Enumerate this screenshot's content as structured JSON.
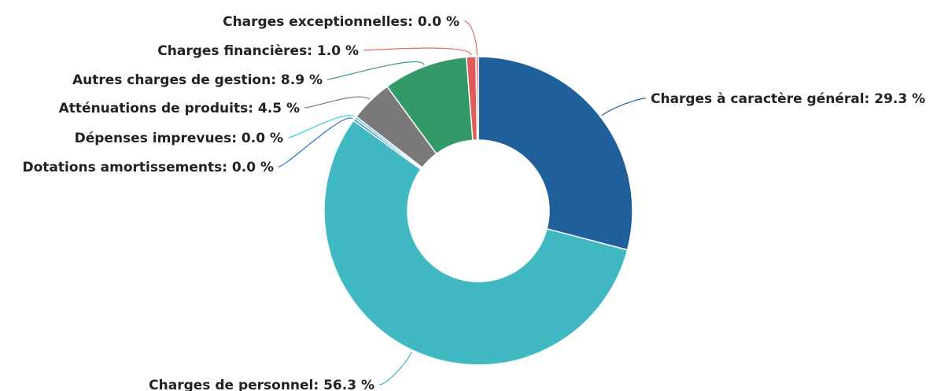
{
  "chart_data": {
    "type": "pie",
    "variant": "donut",
    "unit": "%",
    "categories": [
      "Charges à caractère général",
      "Charges de personnel",
      "Dotations amortissements",
      "Dépenses imprevues",
      "Atténuations de produits",
      "Autres charges de gestion",
      "Charges financières",
      "Charges exceptionnelles"
    ],
    "values": [
      29.3,
      56.3,
      0.0,
      0.0,
      4.5,
      8.9,
      1.0,
      0.0
    ],
    "labels": [
      "Charges à caractère général: 29.3 %",
      "Charges de personnel: 56.3 %",
      "Dotations amortissements: 0.0 %",
      "Dépenses imprevues: 0.0 %",
      "Atténuations de produits: 4.5 %",
      "Autres charges de gestion: 8.9 %",
      "Charges financières: 1.0 %",
      "Charges exceptionnelles: 0.0 %"
    ],
    "colors": [
      "#1f5f9c",
      "#40b9c2",
      "#2b6fd0",
      "#30d5e8",
      "#7a7a7a",
      "#339966",
      "#e05a5a",
      "#e86a6a"
    ],
    "legend": "none",
    "data_labels": "outside-with-connectors"
  }
}
